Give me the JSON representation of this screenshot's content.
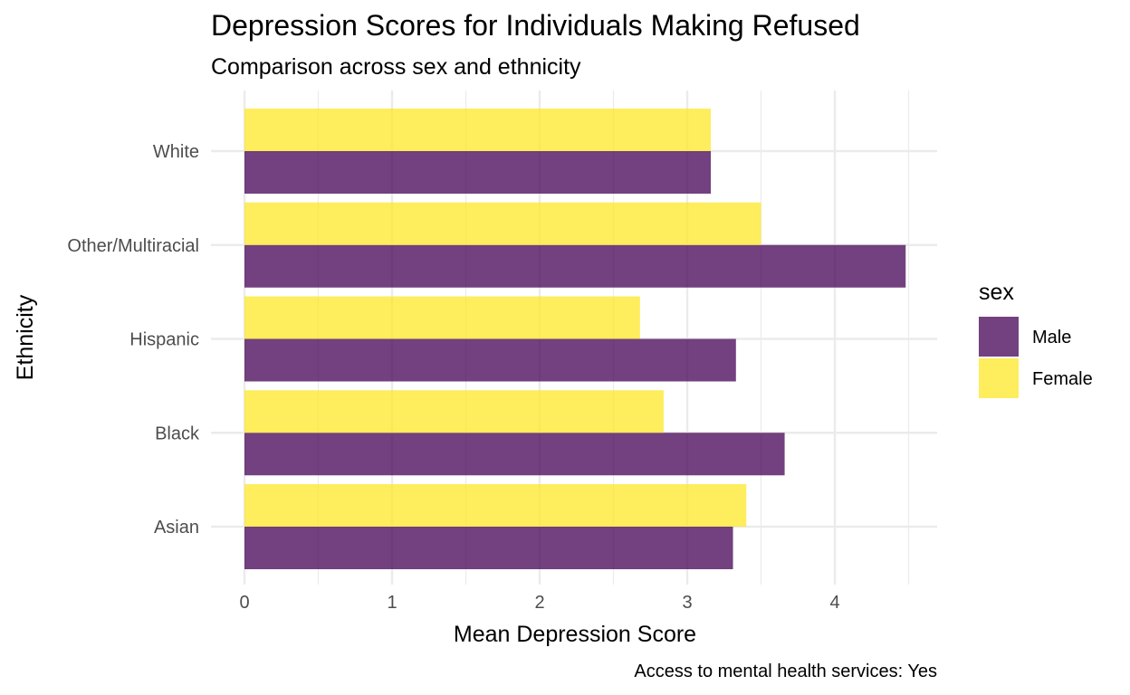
{
  "chart_data": {
    "type": "bar",
    "orientation": "horizontal",
    "title": "Depression Scores for Individuals Making Refused",
    "subtitle": "Comparison across sex and ethnicity",
    "caption": "Access to mental health services: Yes",
    "xlabel": "Mean Depression Score",
    "ylabel": "Ethnicity",
    "categories": [
      "Asian",
      "Black",
      "Hispanic",
      "Other/Multiracial",
      "White"
    ],
    "series": [
      {
        "name": "Male",
        "values": [
          3.31,
          3.66,
          3.33,
          4.48,
          3.16
        ],
        "color": "#440154"
      },
      {
        "name": "Female",
        "values": [
          3.4,
          2.84,
          2.68,
          3.5,
          3.16
        ],
        "color": "#FDE725"
      }
    ],
    "xlim": [
      0,
      4.65
    ],
    "xticks": [
      0,
      1,
      2,
      3,
      4
    ],
    "xtick_labels": [
      "0",
      "1",
      "2",
      "3",
      "4"
    ],
    "grid": true,
    "bar_opacity": 0.75,
    "legend": {
      "title": "sex",
      "position": "right"
    }
  }
}
